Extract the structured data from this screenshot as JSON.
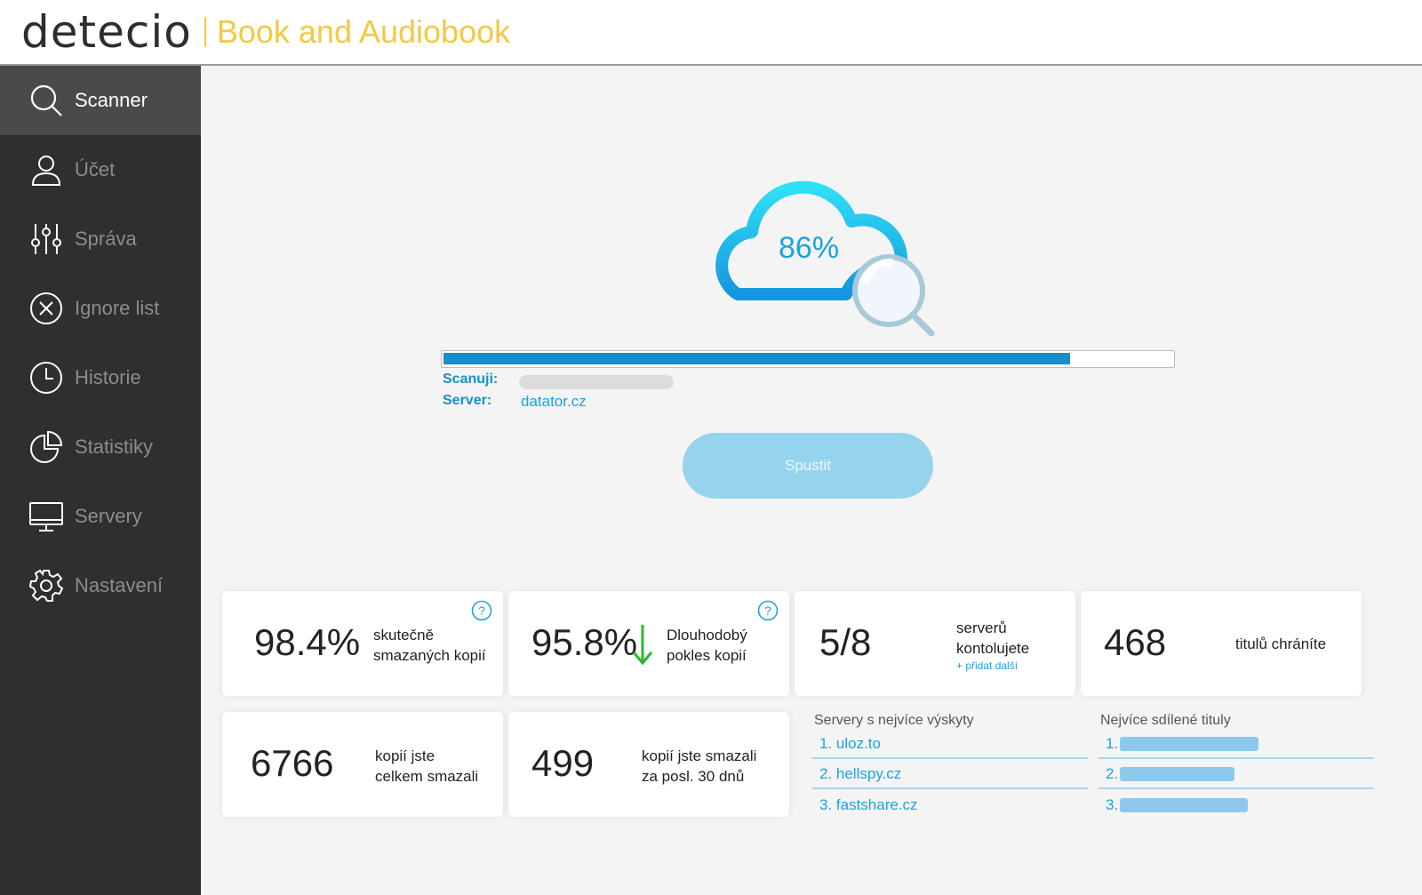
{
  "header": {
    "logo": "detecio",
    "product": "Book and Audiobook"
  },
  "sidebar": {
    "items": [
      {
        "label": "Scanner",
        "icon": "search-icon",
        "active": true
      },
      {
        "label": "Účet",
        "icon": "user-icon",
        "active": false
      },
      {
        "label": "Správa",
        "icon": "sliders-icon",
        "active": false
      },
      {
        "label": "Ignore list",
        "icon": "close-circle-icon",
        "active": false
      },
      {
        "label": "Historie",
        "icon": "clock-icon",
        "active": false
      },
      {
        "label": "Statistiky",
        "icon": "pie-chart-icon",
        "active": false
      },
      {
        "label": "Servery",
        "icon": "monitor-icon",
        "active": false
      },
      {
        "label": "Nastavení",
        "icon": "gear-icon",
        "active": false
      }
    ]
  },
  "scanner": {
    "percent_label": "86%",
    "progress": 0.86,
    "scan_label": "Scanuji:",
    "server_label": "Server:",
    "server_value": "datator.cz",
    "start_button": "Spustit"
  },
  "cards": {
    "deleted": {
      "value": "98.4%",
      "text1": "skutečně",
      "text2": "smazaných kopií"
    },
    "decline": {
      "value": "95.8%",
      "text1": "Dlouhodobý",
      "text2": "pokles kopií"
    },
    "servers": {
      "value": "5/8",
      "text1": "serverů",
      "text2": "kontolujete",
      "link": "+ přidat další"
    },
    "titles": {
      "value": "468",
      "text1": "titulů chráníte"
    },
    "total": {
      "value": "6766",
      "text1": "kopií jste",
      "text2": "celkem smazali"
    },
    "last30": {
      "value": "499",
      "text1": "kopií jste smazali",
      "text2": "za posl. 30 dnů"
    }
  },
  "top_servers": {
    "title": "Servery s nejvíce výskyty",
    "items": [
      "1. uloz.to",
      "2. hellspy.cz",
      "3. fastshare.cz"
    ]
  },
  "top_titles": {
    "title": "Nejvíce sdílené tituly",
    "items": [
      "1.",
      "2.",
      "3."
    ],
    "bar_fractions": [
      0.52,
      0.43,
      0.48
    ]
  },
  "colors": {
    "accent": "#1ba3e0",
    "progress": "#1a8ec8",
    "logo_accent": "#f5c842",
    "sidebar": "#2f2f2f",
    "decline_arrow": "#2db82d"
  }
}
